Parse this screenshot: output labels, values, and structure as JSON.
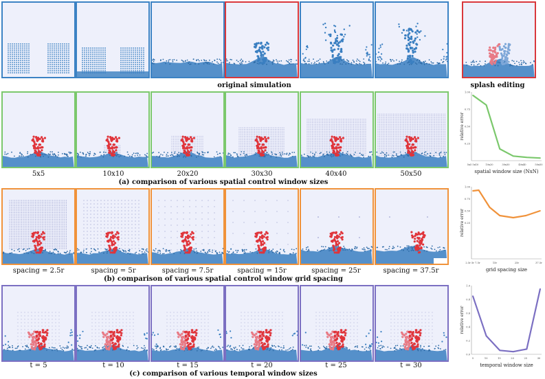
{
  "colors": {
    "blue": "#3b82c4",
    "red": "#d9373b",
    "green": "#7bc86c",
    "orange": "#f0923a",
    "purple": "#7b6fc2",
    "panel_bg": "#eef0fb",
    "water": "#3a7fc1",
    "splash": "#e0343a"
  },
  "row0": {
    "caption": "original simulation",
    "edit_caption": "splash editing"
  },
  "rows": [
    {
      "caption": "(a) comparison of various spatial control window sizes",
      "labels": [
        "5x5",
        "10x10",
        "20x20",
        "30x30",
        "40x40",
        "50x50"
      ]
    },
    {
      "caption": "(b) comparison of various spatial control window grid spacing",
      "labels": [
        "spacing = 2.5r",
        "spacing = 5r",
        "spacing = 7.5r",
        "spacing = 15r",
        "spacing = 25r",
        "spacing = 37.5r"
      ]
    },
    {
      "caption": "(c) comparison of various temporal window sizes",
      "labels": [
        "t = 5",
        "t = 10",
        "t = 15",
        "t = 20",
        "t = 25",
        "t = 30"
      ]
    }
  ],
  "chart_data": [
    {
      "type": "line",
      "color": "#7bc86c",
      "categories": [
        "5x5",
        "10x10",
        "20x20",
        "30x30",
        "40x40",
        "50x50"
      ],
      "tick_labels": [
        "5x5 5x10",
        "10x20",
        "30x30",
        "40x40",
        "50x50"
      ],
      "y_ticks": [
        "1.00",
        "0.75",
        "0.50",
        "0.25"
      ],
      "values": [
        1.0,
        0.85,
        0.18,
        0.07,
        0.05,
        0.04
      ],
      "ylim": [
        0,
        1.05
      ],
      "ylabel": "relative error",
      "xlabel": "spatial window size (NxN)"
    },
    {
      "type": "line",
      "color": "#f0923a",
      "categories": [
        "2.5r",
        "3r",
        "5r",
        "7.5r",
        "15r",
        "25r",
        "37.5r"
      ],
      "x": [
        0,
        0.35,
        1,
        1.6,
        2.4,
        3.15,
        4
      ],
      "tick_labels": [
        "2.5r 5r 7.5r",
        "15r",
        "25r",
        "37.5r"
      ],
      "y_ticks": [
        "1.00",
        "0.75",
        "0.50",
        "0.25"
      ],
      "values": [
        0.99,
        1.0,
        0.75,
        0.63,
        0.6,
        0.63,
        0.7
      ],
      "ylim": [
        0,
        1.05
      ],
      "ylabel": "relative error",
      "xlabel": "grid spacing size"
    },
    {
      "type": "line",
      "color": "#7b6fc2",
      "categories": [
        "5",
        "10",
        "15",
        "20",
        "25",
        "30"
      ],
      "tick_labels": [
        "5",
        "10",
        "15",
        "20",
        "25",
        "30"
      ],
      "y_ticks": [
        "1.0",
        "0.8",
        "0.6",
        "0.4",
        "0.2",
        "0.0"
      ],
      "values": [
        0.89,
        0.28,
        0.06,
        0.04,
        0.08,
        1.0
      ],
      "ylim": [
        0,
        1.05
      ],
      "ylabel": "relative error",
      "xlabel": "temporal window size"
    }
  ]
}
